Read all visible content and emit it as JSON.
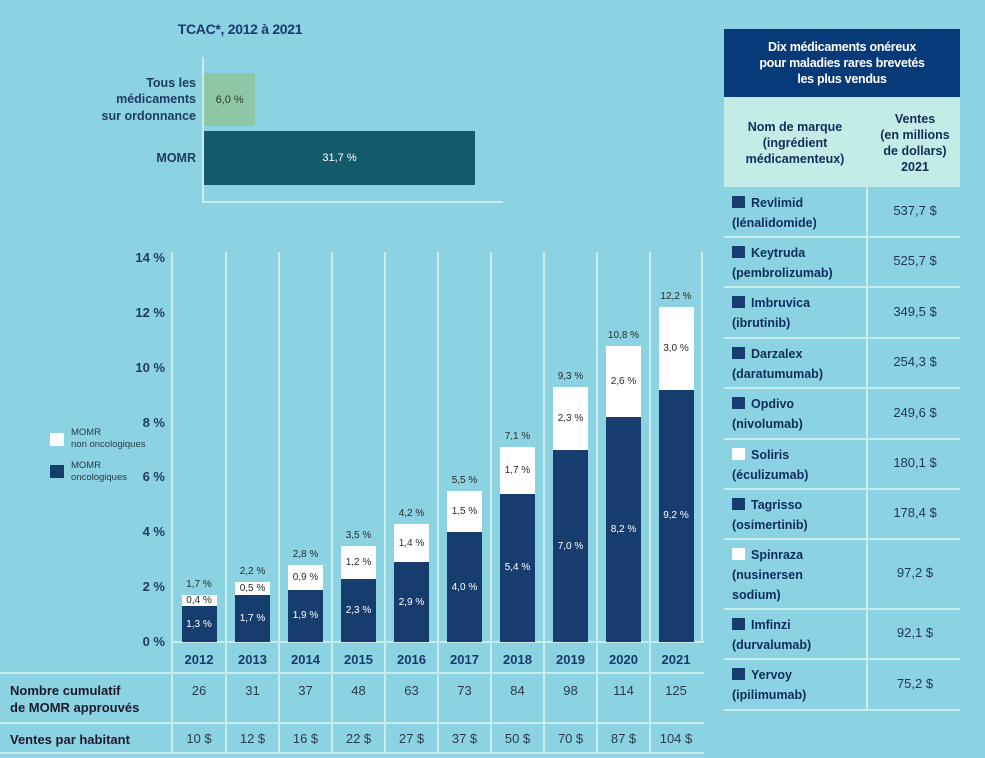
{
  "colors": {
    "background": "#8bd3e3",
    "oncology": "#173c6e",
    "non_oncology": "#ffffff",
    "all_drugs_bar": "#8fc6a5",
    "eomrd_bar": "#135a6d",
    "table_title_bg": "#073a78",
    "table_header_bg": "#c4ece6",
    "grid": "#c8ece9"
  },
  "chart_data": [
    {
      "type": "bar",
      "orientation": "horizontal",
      "title": "TCAC*, 2012 à 2021",
      "categories": [
        "Tous les médicaments sur ordonnance",
        "MOMR"
      ],
      "category_lines": [
        [
          "Tous les",
          "médicaments",
          "sur ordonnance"
        ],
        [
          "MOMR"
        ]
      ],
      "values": [
        6.0,
        31.7
      ],
      "value_labels": [
        "6,0 %",
        "31,7 %"
      ],
      "unit": "%",
      "xlim": [
        0,
        31.7
      ]
    },
    {
      "type": "bar",
      "stacked": true,
      "title": "",
      "xlabel": "",
      "ylabel": "",
      "ylim": [
        0,
        14
      ],
      "yticks": [
        0,
        2,
        4,
        6,
        8,
        10,
        12,
        14
      ],
      "ytick_labels": [
        "0 %",
        "2 %",
        "4 %",
        "6 %",
        "8 %",
        "10 %",
        "12 %",
        "14 %"
      ],
      "categories": [
        "2012",
        "2013",
        "2014",
        "2015",
        "2016",
        "2017",
        "2018",
        "2019",
        "2020",
        "2021"
      ],
      "series": [
        {
          "name": "MOMR oncologiques",
          "legend_lines": [
            "MOMR",
            "oncologiques"
          ],
          "values": [
            1.3,
            1.7,
            1.9,
            2.3,
            2.9,
            4.0,
            5.4,
            7.0,
            8.2,
            9.2
          ],
          "labels": [
            "1,3 %",
            "1,7 %",
            "1,9 %",
            "2,3 %",
            "2,9 %",
            "4,0 %",
            "5,4 %",
            "7,0 %",
            "8,2 %",
            "9,2 %"
          ]
        },
        {
          "name": "MOMR non oncologiques",
          "legend_lines": [
            "MOMR",
            "non oncologiques"
          ],
          "values": [
            0.4,
            0.5,
            0.9,
            1.2,
            1.4,
            1.5,
            1.7,
            2.3,
            2.6,
            3.0
          ],
          "labels": [
            "0,4 %",
            "0,5 %",
            "0,9 %",
            "1,2 %",
            "1,4 %",
            "1,5 %",
            "1,7 %",
            "2,3 %",
            "2,6 %",
            "3,0 %"
          ]
        }
      ],
      "totals": [
        1.7,
        2.2,
        2.8,
        3.5,
        4.2,
        5.5,
        7.1,
        9.3,
        10.8,
        12.2
      ],
      "total_labels": [
        "1,7 %",
        "2,2 %",
        "2,8 %",
        "3,5 %",
        "4,2 %",
        "5,5 %",
        "7,1 %",
        "9,3 %",
        "10,8 %",
        "12,2 %"
      ],
      "legend_placement": "left",
      "grid": "vertical separators"
    },
    {
      "type": "table",
      "rows": [
        {
          "label_lines": [
            "Nombre cumulatif",
            "de MOMR approuvés"
          ],
          "values": [
            "26",
            "31",
            "37",
            "48",
            "63",
            "73",
            "84",
            "98",
            "114",
            "125"
          ]
        },
        {
          "label_lines": [
            "Ventes par habitant"
          ],
          "values": [
            "10 $",
            "12 $",
            "16 $",
            "22 $",
            "27 $",
            "37 $",
            "50 $",
            "70 $",
            "87 $",
            "104 $"
          ]
        }
      ]
    },
    {
      "type": "table",
      "title_lines": [
        "Dix médicaments onéreux",
        "pour maladies rares brevetés",
        "les plus vendus"
      ],
      "headers": [
        [
          "Nom de marque",
          "(ingrédient",
          "médicamenteux)"
        ],
        [
          "Ventes",
          "(en millions",
          "de dollars)",
          "2021"
        ]
      ],
      "rows": [
        {
          "brand": "Revlimid",
          "ingredient_lines": [
            "(lénalidomide)"
          ],
          "sales": "537,7 $",
          "oncology": true
        },
        {
          "brand": "Keytruda",
          "ingredient_lines": [
            "(pembrolizumab)"
          ],
          "sales": "525,7 $",
          "oncology": true
        },
        {
          "brand": "Imbruvica",
          "ingredient_lines": [
            "(ibrutinib)"
          ],
          "sales": "349,5 $",
          "oncology": true
        },
        {
          "brand": "Darzalex",
          "ingredient_lines": [
            "(daratumumab)"
          ],
          "sales": "254,3 $",
          "oncology": true
        },
        {
          "brand": "Opdivo",
          "ingredient_lines": [
            "(nivolumab)"
          ],
          "sales": "249,6 $",
          "oncology": true
        },
        {
          "brand": "Soliris",
          "ingredient_lines": [
            "(éculizumab)"
          ],
          "sales": "180,1 $",
          "oncology": false
        },
        {
          "brand": "Tagrisso",
          "ingredient_lines": [
            "(osimertinib)"
          ],
          "sales": "178,4 $",
          "oncology": true
        },
        {
          "brand": "Spinraza",
          "ingredient_lines": [
            "(nusinersen",
            "sodium)"
          ],
          "sales": "97,2 $",
          "oncology": false
        },
        {
          "brand": "Imfinzi",
          "ingredient_lines": [
            "(durvalumab)"
          ],
          "sales": "92,1 $",
          "oncology": true
        },
        {
          "brand": "Yervoy",
          "ingredient_lines": [
            "(ipilimumab)"
          ],
          "sales": "75,2 $",
          "oncology": true
        }
      ]
    }
  ]
}
